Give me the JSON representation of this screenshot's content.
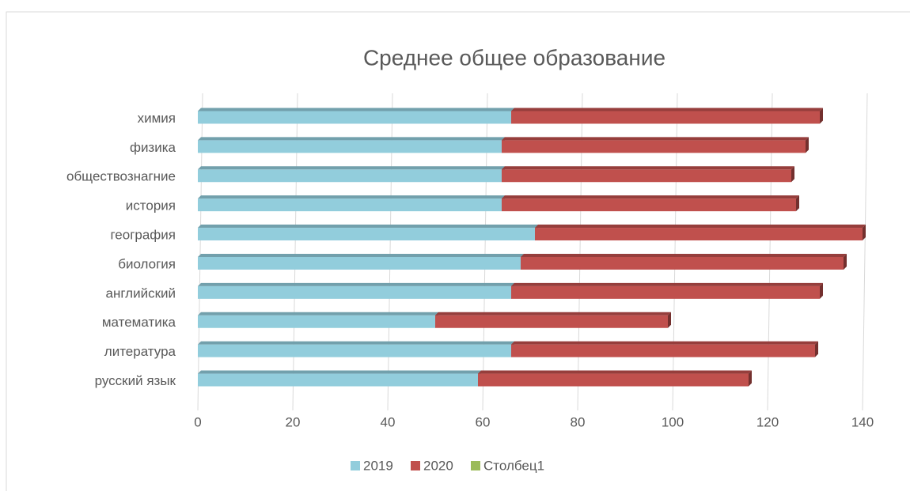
{
  "chart_data": {
    "type": "bar",
    "orientation": "horizontal",
    "stacked": true,
    "title": "Среднее общее образование",
    "categories": [
      "русский язык",
      "литература",
      "математика",
      "английский",
      "биология",
      "география",
      "история",
      "обществознагние",
      "физика",
      "химия"
    ],
    "series": [
      {
        "name": "2019",
        "color": "#92cddc",
        "values": [
          59,
          66,
          50,
          66,
          68,
          71,
          64,
          64,
          64,
          66
        ]
      },
      {
        "name": "2020",
        "color": "#c0504d",
        "values": [
          57,
          64,
          49,
          65,
          68,
          69,
          62,
          61,
          64,
          65
        ]
      },
      {
        "name": "Столбец1",
        "color": "#9bbb59",
        "values": [
          null,
          null,
          null,
          null,
          null,
          null,
          null,
          null,
          null,
          null
        ]
      }
    ],
    "xlim": [
      0,
      140
    ],
    "xticks": [
      0,
      20,
      40,
      60,
      80,
      100,
      120,
      140
    ],
    "grid": true,
    "legend": "bottom"
  }
}
